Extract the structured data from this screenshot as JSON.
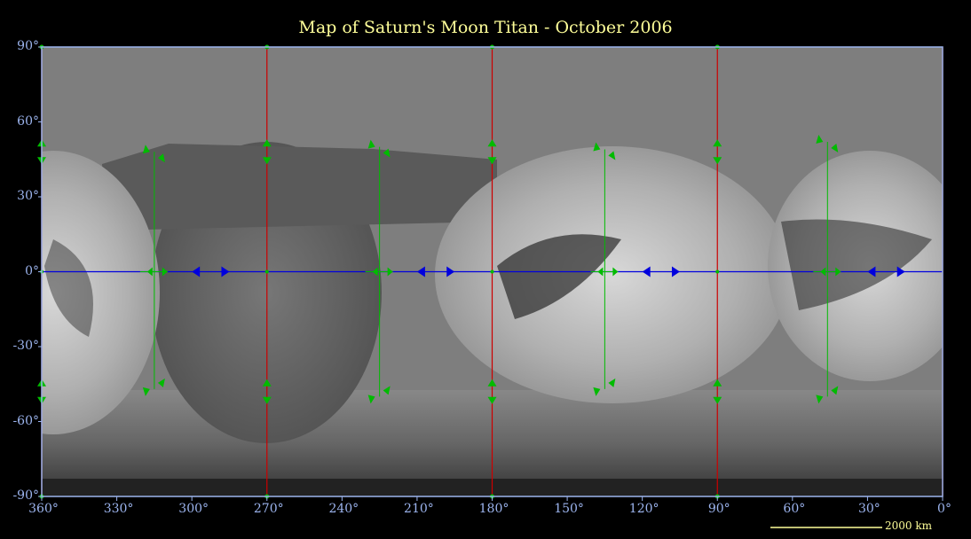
{
  "title": "Map of Saturn's Moon Titan - October 2006",
  "y_ticks": [
    {
      "value": 90,
      "label": "90°"
    },
    {
      "value": 60,
      "label": "60°"
    },
    {
      "value": 30,
      "label": "30°"
    },
    {
      "value": 0,
      "label": "0°"
    },
    {
      "value": -30,
      "label": "-30°"
    },
    {
      "value": -60,
      "label": "-60°"
    },
    {
      "value": -90,
      "label": "-90°"
    }
  ],
  "x_ticks": [
    {
      "value": 360,
      "label": "360°"
    },
    {
      "value": 330,
      "label": "330°"
    },
    {
      "value": 300,
      "label": "300°"
    },
    {
      "value": 270,
      "label": "270°"
    },
    {
      "value": 240,
      "label": "240°"
    },
    {
      "value": 210,
      "label": "210°"
    },
    {
      "value": 180,
      "label": "180°"
    },
    {
      "value": 150,
      "label": "150°"
    },
    {
      "value": 120,
      "label": "120°"
    },
    {
      "value": 90,
      "label": "90°"
    },
    {
      "value": 60,
      "label": "60°"
    },
    {
      "value": 30,
      "label": "30°"
    },
    {
      "value": 0,
      "label": "0°"
    }
  ],
  "meridians": [
    360,
    270,
    180,
    90,
    0
  ],
  "scale_bar": "2000 km",
  "colors": {
    "title": "#ffff99",
    "axis": "#9cb4ee",
    "meridian": "#cc0000",
    "equator": "#0000dd",
    "track": "#00bb00"
  }
}
